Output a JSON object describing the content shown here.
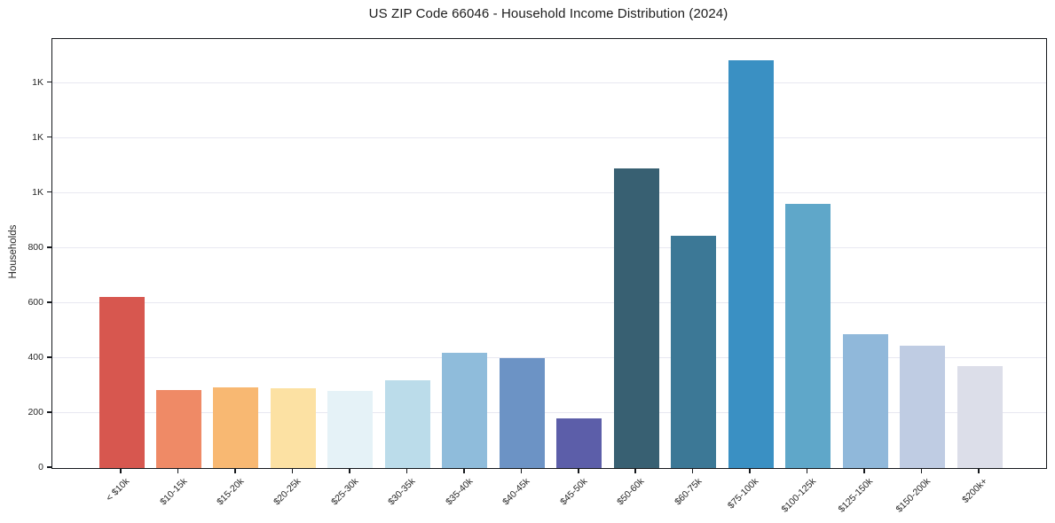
{
  "figure": {
    "background": "#ffffff"
  },
  "chart_data": {
    "type": "bar",
    "title": "US ZIP Code 66046 - Household Income Distribution (2024)",
    "xlabel": "",
    "ylabel": "Households",
    "categories": [
      "< $10k",
      "$10-15k",
      "$15-20k",
      "$20-25k",
      "$25-30k",
      "$30-35k",
      "$35-40k",
      "$40-45k",
      "$45-50k",
      "$50-60k",
      "$60-75k",
      "$75-100k",
      "$100-125k",
      "$125-150k",
      "$150-200k",
      "$200k+"
    ],
    "values": [
      622,
      285,
      293,
      290,
      282,
      318,
      418,
      400,
      180,
      1088,
      845,
      1484,
      960,
      487,
      444,
      370
    ],
    "bar_colors": [
      "#d7574f",
      "#ef8a66",
      "#f8b872",
      "#fce1a3",
      "#e5f2f7",
      "#bbdcea",
      "#8fbcdb",
      "#6c93c5",
      "#5c5ea9",
      "#386072",
      "#3c7896",
      "#3a90c3",
      "#5fa7c9",
      "#90b8da",
      "#bfcce3",
      "#dcdee9"
    ],
    "ylim": [
      0,
      1560
    ],
    "yticks": [
      {
        "value": 0,
        "label": "0"
      },
      {
        "value": 200,
        "label": "200"
      },
      {
        "value": 400,
        "label": "400"
      },
      {
        "value": 600,
        "label": "600"
      },
      {
        "value": 800,
        "label": "800"
      },
      {
        "value": 1000,
        "label": "1K"
      },
      {
        "value": 1200,
        "label": "1K"
      },
      {
        "value": 1400,
        "label": "1K"
      }
    ],
    "grid": "horizontal",
    "legend": "none"
  },
  "style": {
    "axis_color": "#15181c",
    "grid_color": "#e8e8f1",
    "text_color": "#262626"
  }
}
